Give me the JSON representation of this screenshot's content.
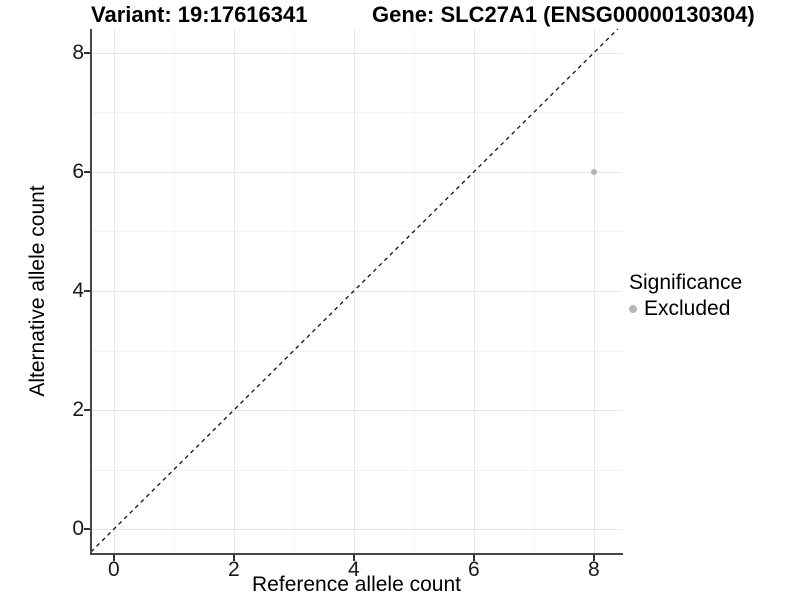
{
  "header": {
    "variant_title": "Variant: 19:17616341",
    "gene_title": "Gene: SLC27A1 (ENSG00000130304)"
  },
  "chart_data": {
    "type": "scatter",
    "xlabel": "Reference allele count",
    "ylabel": "Alternative allele count",
    "x_ticks": [
      0,
      2,
      4,
      6,
      8
    ],
    "y_ticks": [
      0,
      2,
      4,
      6,
      8
    ],
    "x_minor_ticks": [
      1,
      3,
      5,
      7
    ],
    "y_minor_ticks": [
      1,
      3,
      5,
      7
    ],
    "xlim": [
      -0.38,
      8.47
    ],
    "ylim": [
      -0.4,
      8.4
    ],
    "grid": "major and minor gridlines on white background",
    "points": [
      {
        "x": 8,
        "y": 6,
        "series": "Excluded"
      }
    ],
    "identity_line": {
      "equation": "y = x",
      "style": "dashed",
      "color": "#111111"
    },
    "legend": {
      "title": "Significance",
      "position": "right",
      "entries": [
        {
          "label": "Excluded",
          "color": "#b5b5b5"
        }
      ]
    }
  },
  "style": {
    "point_color": "#b5b5b5",
    "major_grid_color": "#e7e7e7",
    "minor_grid_color": "#f3f3f3",
    "axis_line_color": "#474747",
    "tick_color": "#333333",
    "background": "#ffffff"
  }
}
